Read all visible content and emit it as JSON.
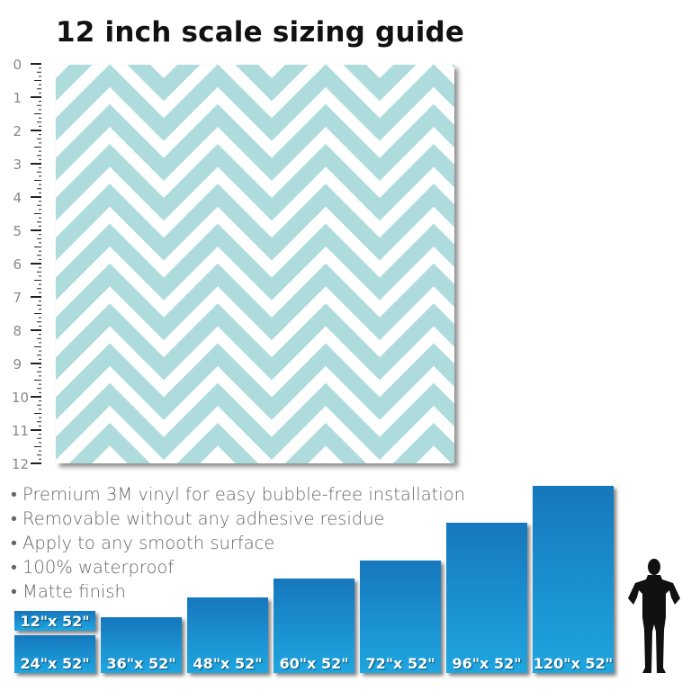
{
  "title": "12 inch scale sizing guide",
  "ruler": {
    "labels": [
      "0",
      "1",
      "2",
      "3",
      "4",
      "5",
      "6",
      "7",
      "8",
      "9",
      "10",
      "11",
      "12"
    ]
  },
  "pattern": {
    "name": "chevron",
    "colors": {
      "stripe": "#aedcdc",
      "background": "#ffffff"
    }
  },
  "features": [
    "• Premium 3M vinyl for easy bubble-free installation",
    "• Removable without any adhesive residue",
    "• Apply to any smooth surface",
    "• 100% waterproof",
    "• Matte finish"
  ],
  "sizes": [
    {
      "label": "12\"x 52\""
    },
    {
      "label": "24\"x 52\""
    },
    {
      "label": "36\"x 52\""
    },
    {
      "label": "48\"x 52\""
    },
    {
      "label": "60\"x 52\""
    },
    {
      "label": "72\"x 52\""
    },
    {
      "label": "96\"x 52\""
    },
    {
      "label": "120\"x 52\""
    }
  ],
  "colors": {
    "bar_top": "#1677bd",
    "bar_bottom": "#1ea6e0"
  }
}
